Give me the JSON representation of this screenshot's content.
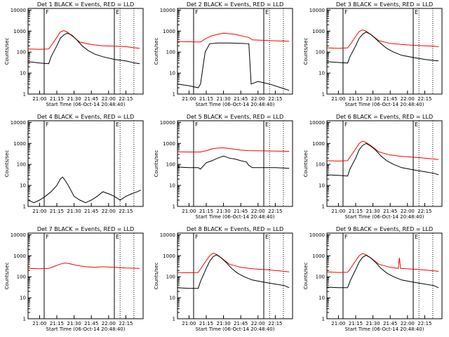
{
  "chart_data": {
    "type": "line",
    "x_ticks": [
      "21:00",
      "21:15",
      "21:30",
      "21:45",
      "22:00",
      "22:15"
    ],
    "y_tick_labels": [
      "1",
      "10",
      "100",
      "1000",
      "10000"
    ],
    "y_scale": "log",
    "ylim": [
      1,
      12000
    ],
    "xlim_minutes_after_start": [
      0,
      100
    ],
    "ylabel": "Counts/sec",
    "xlabel": "Start Time (06-Oct-14 20:48:40)",
    "colors": {
      "events": "#000000",
      "lld": "#ff0000"
    },
    "markers": {
      "f": "F",
      "e": "E"
    },
    "panels": [
      {
        "title": "Det 1 BLACK = Events, RED = LLD",
        "show_xlabel": true,
        "black": [
          [
            0,
            35
          ],
          [
            10,
            30
          ],
          [
            18,
            28
          ],
          [
            20,
            60
          ],
          [
            25,
            200
          ],
          [
            28,
            450
          ],
          [
            31,
            650
          ],
          [
            34,
            800
          ],
          [
            38,
            650
          ],
          [
            42,
            400
          ],
          [
            47,
            200
          ],
          [
            52,
            120
          ],
          [
            58,
            80
          ],
          [
            65,
            60
          ],
          [
            75,
            45
          ],
          [
            85,
            38
          ],
          [
            93,
            30
          ],
          [
            97,
            28
          ]
        ],
        "red": [
          [
            0,
            140
          ],
          [
            10,
            135
          ],
          [
            18,
            140
          ],
          [
            20,
            200
          ],
          [
            25,
            500
          ],
          [
            28,
            900
          ],
          [
            31,
            1050
          ],
          [
            34,
            900
          ],
          [
            38,
            600
          ],
          [
            45,
            300
          ],
          [
            55,
            230
          ],
          [
            65,
            200
          ],
          [
            75,
            190
          ],
          [
            85,
            180
          ],
          [
            93,
            160
          ],
          [
            97,
            150
          ]
        ]
      },
      {
        "title": "Det 2 BLACK = Events, RED = LLD",
        "show_xlabel": true,
        "black": [
          [
            0,
            3
          ],
          [
            10,
            2.5
          ],
          [
            18,
            2
          ],
          [
            20,
            3
          ],
          [
            24,
            100
          ],
          [
            28,
            250
          ],
          [
            35,
            270
          ],
          [
            45,
            270
          ],
          [
            55,
            260
          ],
          [
            62,
            250
          ],
          [
            64,
            3
          ],
          [
            70,
            4
          ],
          [
            80,
            3
          ],
          [
            90,
            2
          ],
          [
            97,
            1.5
          ]
        ],
        "red": [
          [
            0,
            320
          ],
          [
            10,
            310
          ],
          [
            20,
            300
          ],
          [
            25,
            450
          ],
          [
            30,
            600
          ],
          [
            35,
            700
          ],
          [
            40,
            800
          ],
          [
            45,
            750
          ],
          [
            50,
            700
          ],
          [
            55,
            600
          ],
          [
            62,
            500
          ],
          [
            65,
            380
          ],
          [
            80,
            350
          ],
          [
            97,
            330
          ]
        ]
      },
      {
        "title": "Det 3 BLACK = Events, RED = LLD",
        "show_xlabel": true,
        "black": [
          [
            0,
            35
          ],
          [
            10,
            32
          ],
          [
            18,
            30
          ],
          [
            20,
            60
          ],
          [
            25,
            200
          ],
          [
            28,
            450
          ],
          [
            31,
            700
          ],
          [
            34,
            900
          ],
          [
            38,
            700
          ],
          [
            42,
            450
          ],
          [
            47,
            250
          ],
          [
            52,
            150
          ],
          [
            58,
            100
          ],
          [
            65,
            70
          ],
          [
            75,
            55
          ],
          [
            85,
            45
          ],
          [
            93,
            40
          ],
          [
            97,
            38
          ]
        ],
        "red": [
          [
            0,
            160
          ],
          [
            10,
            150
          ],
          [
            18,
            160
          ],
          [
            20,
            220
          ],
          [
            25,
            550
          ],
          [
            28,
            950
          ],
          [
            31,
            1150
          ],
          [
            34,
            1000
          ],
          [
            38,
            700
          ],
          [
            45,
            350
          ],
          [
            55,
            260
          ],
          [
            65,
            230
          ],
          [
            75,
            210
          ],
          [
            85,
            200
          ],
          [
            93,
            190
          ],
          [
            97,
            180
          ]
        ]
      },
      {
        "title": "Det 4 BLACK = Events, RED = LLD",
        "show_xlabel": false,
        "black": [
          [
            0,
            2
          ],
          [
            5,
            1.5
          ],
          [
            10,
            2
          ],
          [
            15,
            3
          ],
          [
            20,
            5
          ],
          [
            25,
            10
          ],
          [
            28,
            20
          ],
          [
            30,
            25
          ],
          [
            32,
            18
          ],
          [
            35,
            10
          ],
          [
            40,
            3
          ],
          [
            45,
            2
          ],
          [
            50,
            1.5
          ],
          [
            55,
            2
          ],
          [
            60,
            3
          ],
          [
            65,
            5
          ],
          [
            70,
            4
          ],
          [
            75,
            3
          ],
          [
            80,
            2
          ],
          [
            85,
            3
          ],
          [
            90,
            4
          ],
          [
            95,
            5
          ],
          [
            98,
            6
          ]
        ],
        "red": []
      },
      {
        "title": "Det 5 BLACK = Events, RED = LLD",
        "show_xlabel": true,
        "black": [
          [
            0,
            75
          ],
          [
            10,
            70
          ],
          [
            18,
            70
          ],
          [
            20,
            60
          ],
          [
            22,
            80
          ],
          [
            25,
            120
          ],
          [
            30,
            150
          ],
          [
            35,
            200
          ],
          [
            40,
            250
          ],
          [
            45,
            200
          ],
          [
            50,
            180
          ],
          [
            55,
            150
          ],
          [
            60,
            130
          ],
          [
            62,
            90
          ],
          [
            65,
            70
          ],
          [
            75,
            70
          ],
          [
            85,
            70
          ],
          [
            97,
            65
          ]
        ],
        "red": [
          [
            0,
            400
          ],
          [
            10,
            390
          ],
          [
            20,
            390
          ],
          [
            25,
            450
          ],
          [
            30,
            550
          ],
          [
            35,
            600
          ],
          [
            40,
            620
          ],
          [
            45,
            580
          ],
          [
            50,
            520
          ],
          [
            55,
            480
          ],
          [
            62,
            450
          ],
          [
            75,
            440
          ],
          [
            85,
            430
          ],
          [
            97,
            420
          ]
        ]
      },
      {
        "title": "Det 6 BLACK = Events, RED = LLD",
        "show_xlabel": true,
        "black": [
          [
            0,
            32
          ],
          [
            10,
            30
          ],
          [
            18,
            28
          ],
          [
            20,
            60
          ],
          [
            25,
            200
          ],
          [
            28,
            500
          ],
          [
            31,
            800
          ],
          [
            34,
            1000
          ],
          [
            38,
            750
          ],
          [
            42,
            500
          ],
          [
            47,
            250
          ],
          [
            52,
            150
          ],
          [
            58,
            100
          ],
          [
            65,
            70
          ],
          [
            75,
            55
          ],
          [
            85,
            45
          ],
          [
            93,
            38
          ],
          [
            97,
            32
          ]
        ],
        "red": [
          [
            0,
            150
          ],
          [
            10,
            145
          ],
          [
            18,
            150
          ],
          [
            20,
            220
          ],
          [
            25,
            550
          ],
          [
            28,
            1000
          ],
          [
            31,
            1300
          ],
          [
            34,
            1100
          ],
          [
            38,
            800
          ],
          [
            45,
            400
          ],
          [
            55,
            280
          ],
          [
            65,
            240
          ],
          [
            75,
            220
          ],
          [
            85,
            200
          ],
          [
            93,
            180
          ],
          [
            97,
            170
          ]
        ]
      },
      {
        "title": "Det 7 BLACK = Events, RED = LLD",
        "show_xlabel": true,
        "black": [],
        "red": [
          [
            0,
            250
          ],
          [
            10,
            240
          ],
          [
            18,
            250
          ],
          [
            22,
            300
          ],
          [
            28,
            400
          ],
          [
            32,
            450
          ],
          [
            36,
            420
          ],
          [
            42,
            350
          ],
          [
            50,
            300
          ],
          [
            58,
            280
          ],
          [
            65,
            300
          ],
          [
            75,
            280
          ],
          [
            85,
            260
          ],
          [
            97,
            250
          ]
        ]
      },
      {
        "title": "Det 8 BLACK = Events, RED = LLD",
        "show_xlabel": true,
        "black": [
          [
            0,
            30
          ],
          [
            10,
            28
          ],
          [
            18,
            28
          ],
          [
            20,
            60
          ],
          [
            25,
            250
          ],
          [
            28,
            550
          ],
          [
            31,
            900
          ],
          [
            34,
            1100
          ],
          [
            38,
            800
          ],
          [
            42,
            500
          ],
          [
            47,
            250
          ],
          [
            52,
            150
          ],
          [
            58,
            100
          ],
          [
            65,
            70
          ],
          [
            75,
            55
          ],
          [
            85,
            45
          ],
          [
            93,
            38
          ],
          [
            97,
            30
          ]
        ],
        "red": [
          [
            0,
            160
          ],
          [
            10,
            155
          ],
          [
            18,
            160
          ],
          [
            20,
            230
          ],
          [
            25,
            600
          ],
          [
            28,
            1000
          ],
          [
            31,
            1350
          ],
          [
            34,
            1150
          ],
          [
            38,
            800
          ],
          [
            45,
            400
          ],
          [
            55,
            280
          ],
          [
            65,
            240
          ],
          [
            75,
            220
          ],
          [
            85,
            200
          ],
          [
            93,
            180
          ],
          [
            97,
            170
          ]
        ]
      },
      {
        "title": "Det 9 BLACK = Events, RED = LLD",
        "show_xlabel": true,
        "black": [
          [
            0,
            32
          ],
          [
            10,
            30
          ],
          [
            18,
            30
          ],
          [
            20,
            60
          ],
          [
            25,
            220
          ],
          [
            28,
            500
          ],
          [
            31,
            850
          ],
          [
            34,
            1050
          ],
          [
            38,
            800
          ],
          [
            42,
            500
          ],
          [
            47,
            250
          ],
          [
            52,
            150
          ],
          [
            58,
            100
          ],
          [
            65,
            70
          ],
          [
            75,
            55
          ],
          [
            85,
            45
          ],
          [
            93,
            38
          ],
          [
            97,
            30
          ]
        ],
        "red": [
          [
            0,
            170
          ],
          [
            10,
            160
          ],
          [
            18,
            165
          ],
          [
            20,
            230
          ],
          [
            25,
            580
          ],
          [
            28,
            1000
          ],
          [
            31,
            1300
          ],
          [
            34,
            1100
          ],
          [
            38,
            800
          ],
          [
            45,
            400
          ],
          [
            55,
            280
          ],
          [
            62,
            250
          ],
          [
            63,
            800
          ],
          [
            64,
            250
          ],
          [
            75,
            230
          ],
          [
            85,
            210
          ],
          [
            93,
            190
          ],
          [
            97,
            180
          ]
        ]
      }
    ]
  }
}
